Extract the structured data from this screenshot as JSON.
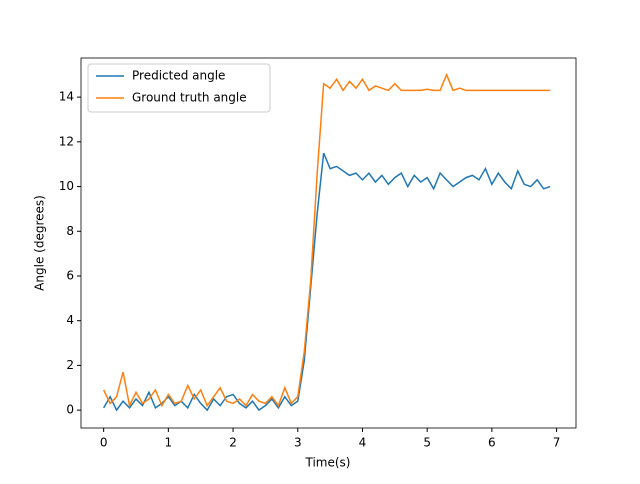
{
  "chart_data": {
    "type": "line",
    "xlabel": "Time(s)",
    "ylabel": "Angle (degrees)",
    "x": [
      0,
      0.1,
      0.2,
      0.3,
      0.4,
      0.5,
      0.6,
      0.7,
      0.8,
      0.9,
      1.0,
      1.1,
      1.2,
      1.3,
      1.4,
      1.5,
      1.6,
      1.7,
      1.8,
      1.9,
      2.0,
      2.1,
      2.2,
      2.3,
      2.4,
      2.5,
      2.6,
      2.7,
      2.8,
      2.9,
      3.0,
      3.1,
      3.2,
      3.3,
      3.4,
      3.5,
      3.6,
      3.7,
      3.8,
      3.9,
      4.0,
      4.1,
      4.2,
      4.3,
      4.4,
      4.5,
      4.6,
      4.7,
      4.8,
      4.9,
      5.0,
      5.1,
      5.2,
      5.3,
      5.4,
      5.5,
      5.6,
      5.7,
      5.8,
      5.9,
      6.0,
      6.1,
      6.2,
      6.3,
      6.4,
      6.5,
      6.6,
      6.7,
      6.8,
      6.9
    ],
    "series": [
      {
        "name": "Predicted angle",
        "color": "#1f77b4",
        "values": [
          0.1,
          0.6,
          0.0,
          0.4,
          0.1,
          0.5,
          0.2,
          0.8,
          0.1,
          0.3,
          0.6,
          0.2,
          0.4,
          0.1,
          0.7,
          0.3,
          0.0,
          0.5,
          0.2,
          0.6,
          0.7,
          0.3,
          0.1,
          0.4,
          0.0,
          0.2,
          0.5,
          0.1,
          0.6,
          0.2,
          0.4,
          2.2,
          5.5,
          8.8,
          11.5,
          10.8,
          10.9,
          10.7,
          10.5,
          10.6,
          10.3,
          10.6,
          10.2,
          10.5,
          10.1,
          10.4,
          10.6,
          10.0,
          10.5,
          10.2,
          10.4,
          9.9,
          10.6,
          10.3,
          10.0,
          10.2,
          10.4,
          10.5,
          10.3,
          10.8,
          10.1,
          10.6,
          10.2,
          9.9,
          10.7,
          10.1,
          10.0,
          10.3,
          9.9,
          10.0
        ]
      },
      {
        "name": "Ground truth angle",
        "color": "#ff7f0e",
        "values": [
          0.9,
          0.3,
          0.6,
          1.7,
          0.2,
          0.8,
          0.3,
          0.5,
          0.9,
          0.2,
          0.7,
          0.3,
          0.4,
          1.1,
          0.5,
          0.9,
          0.2,
          0.6,
          1.0,
          0.4,
          0.3,
          0.5,
          0.2,
          0.7,
          0.4,
          0.3,
          0.6,
          0.2,
          1.0,
          0.3,
          0.6,
          2.6,
          5.8,
          10.6,
          14.6,
          14.4,
          14.8,
          14.3,
          14.7,
          14.4,
          14.8,
          14.3,
          14.5,
          14.4,
          14.3,
          14.6,
          14.3,
          14.3,
          14.3,
          14.3,
          14.35,
          14.3,
          14.3,
          15.0,
          14.3,
          14.4,
          14.3,
          14.3,
          14.3,
          14.3,
          14.3,
          14.3,
          14.3,
          14.3,
          14.3,
          14.3,
          14.3,
          14.3,
          14.3,
          14.3
        ]
      }
    ],
    "xlim": [
      -0.35,
      7.3
    ],
    "ylim": [
      -0.8,
      15.75
    ],
    "xticks": [
      0,
      1,
      2,
      3,
      4,
      5,
      6,
      7
    ],
    "yticks": [
      0,
      2,
      4,
      6,
      8,
      10,
      12,
      14
    ],
    "grid": false,
    "legend": "upper-left"
  }
}
